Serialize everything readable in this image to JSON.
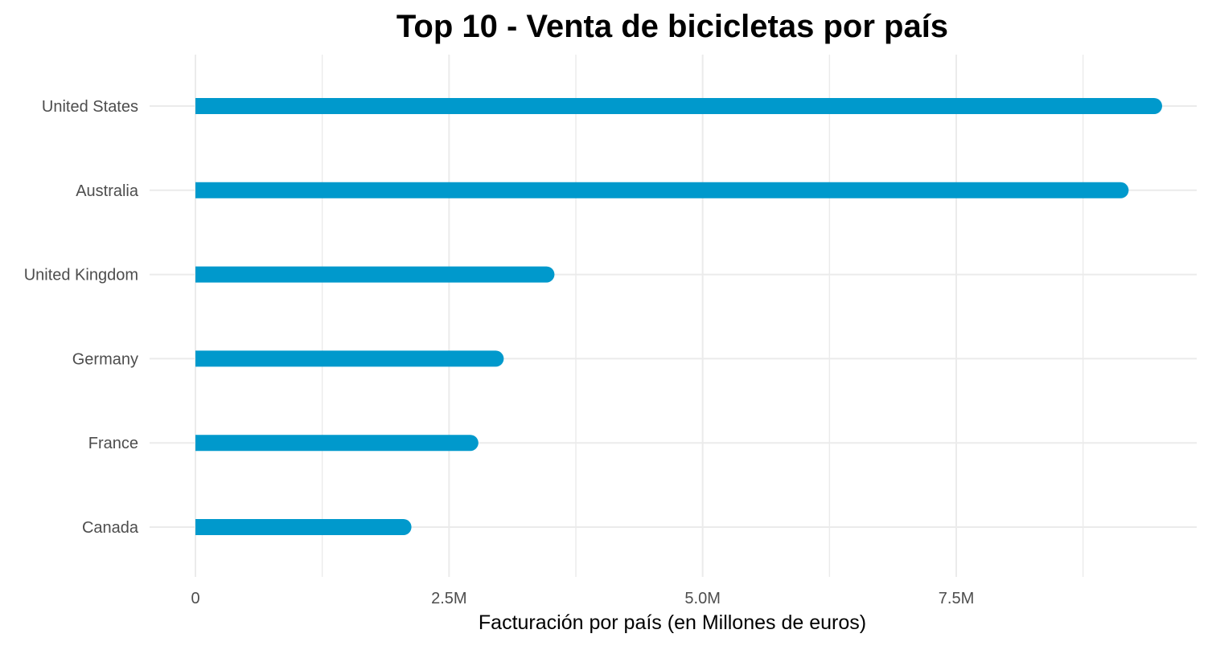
{
  "chart_data": {
    "type": "bar",
    "orientation": "horizontal",
    "title": "Top 10 - Venta de bicicletas por país",
    "xlabel": "Facturación por país (en Millones de euros)",
    "ylabel": "",
    "categories": [
      "United States",
      "Australia",
      "United Kingdom",
      "Germany",
      "France",
      "Canada"
    ],
    "values": [
      9450000,
      9120000,
      3460000,
      2960000,
      2710000,
      2050000
    ],
    "xlim": [
      0,
      9500000
    ],
    "x_ticks": [
      0,
      2500000,
      5000000,
      7500000
    ],
    "x_tick_labels": [
      "0",
      "2.5M",
      "5.0M",
      "7.5M"
    ],
    "bar_color": "#0099cc",
    "grid": true,
    "grid_color": "#ebebeb",
    "legend": "none"
  }
}
